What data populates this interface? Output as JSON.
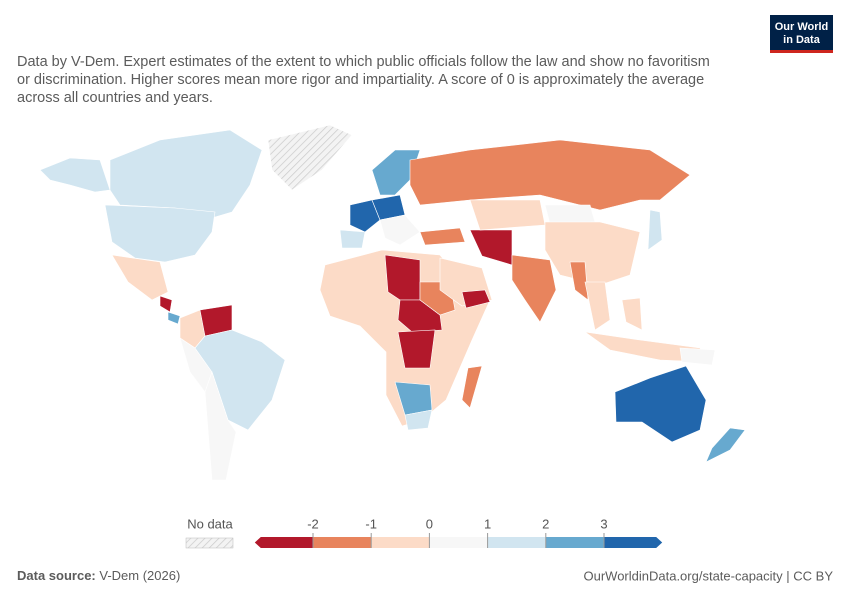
{
  "header": {
    "logo": [
      "Our World",
      "in Data"
    ],
    "subtitle_lines": [
      "Data by V-Dem. Expert estimates of the extent to which public officials follow the law and show no favoritism",
      "or discrimination. Higher scores mean more rigor and impartiality. A score of 0 is approximately the average",
      "across all countries and years."
    ]
  },
  "legend": {
    "no_data": "No data",
    "ticks": [
      -2,
      -1,
      0,
      1,
      2,
      3
    ],
    "colors": [
      "#b2182b",
      "#e8845d",
      "#fcdbc7",
      "#f7f7f7",
      "#d1e5f0",
      "#67a9cf",
      "#2166ac"
    ]
  },
  "footer": {
    "source_label": "Data source:",
    "source": "V-Dem (2026)",
    "link": "OurWorldinData.org/state-capacity | CC BY"
  }
}
